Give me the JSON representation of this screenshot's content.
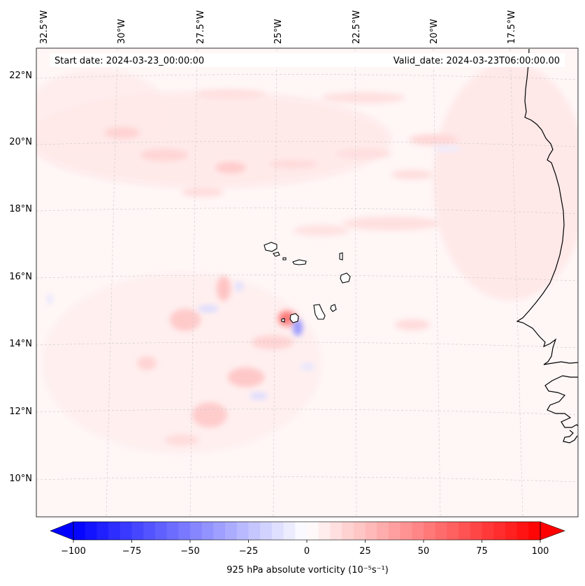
{
  "map": {
    "start_date": "Start date: 2024-03-23_00:00:00",
    "valid_date": "Valid_date: 2024-03-23T06:00:00.00",
    "lon_labels": [
      "32.5°W",
      "30°W",
      "27.5°W",
      "25°W",
      "22.5°W",
      "20°W",
      "17.5°W"
    ],
    "lat_labels": [
      "22°N",
      "20°N",
      "18°N",
      "16°N",
      "14°N",
      "12°N",
      "10°N"
    ],
    "gridlines": true,
    "coastline_color": "#000000"
  },
  "colorbar": {
    "label": "925 hPa absolute vorticity (10⁻⁵s⁻¹)",
    "ticks": [
      "−100",
      "−75",
      "−50",
      "−25",
      "0",
      "25",
      "50",
      "75",
      "100"
    ],
    "min": -100,
    "max": 100,
    "step": 5,
    "cmap": "bwr",
    "extend": "both",
    "low_color": "#0000ff",
    "mid_color": "#ffffff",
    "high_color": "#ff0000"
  }
}
